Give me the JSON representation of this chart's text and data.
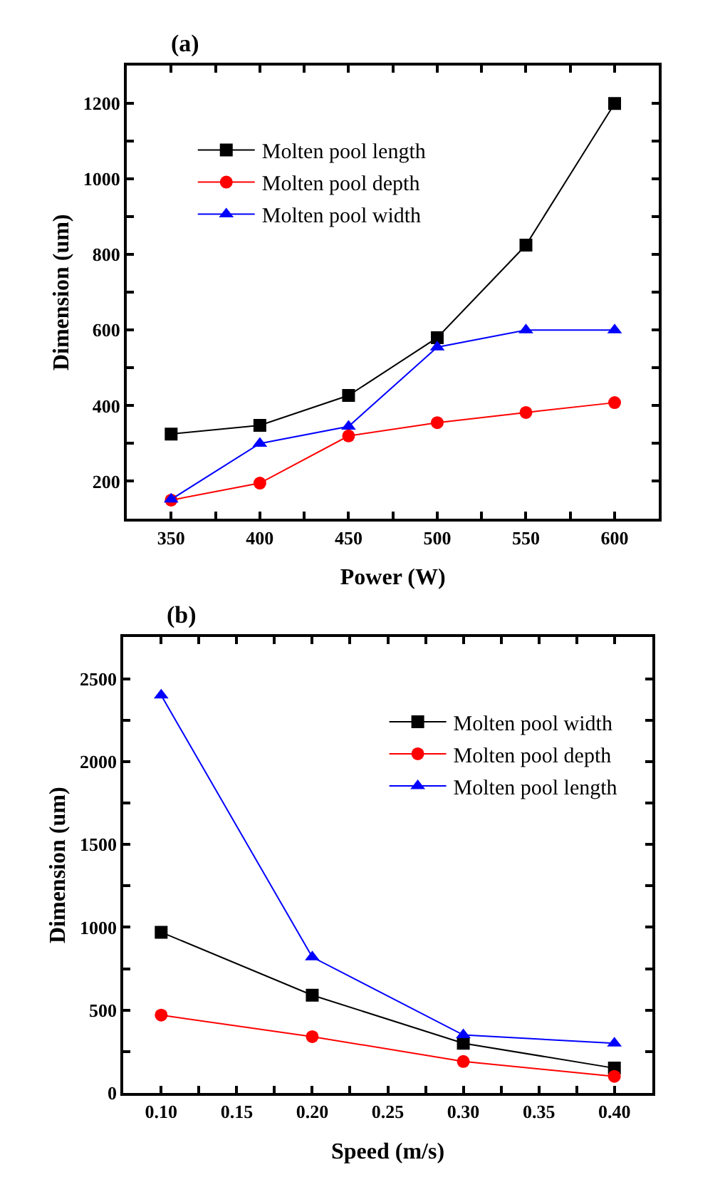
{
  "chart_data": [
    {
      "type": "line",
      "title": "(a)",
      "xlabel": "Power (W)",
      "ylabel": "Dimension (um)",
      "x": [
        350,
        400,
        450,
        500,
        550,
        600
      ],
      "series": [
        {
          "name": "Molten pool length",
          "color": "#000000",
          "marker": "square",
          "values": [
            325,
            348,
            427,
            580,
            825,
            1200
          ]
        },
        {
          "name": "Molten pool depth",
          "color": "#ff0000",
          "marker": "circle",
          "values": [
            150,
            195,
            320,
            355,
            382,
            408
          ]
        },
        {
          "name": "Molten pool width",
          "color": "#0000ff",
          "marker": "triangle",
          "values": [
            152,
            300,
            345,
            555,
            600,
            600
          ]
        }
      ],
      "xlim": [
        325,
        625
      ],
      "xticks": [
        350,
        {
          "value": 375,
          "label": null
        },
        400,
        {
          "value": 425,
          "label": null
        },
        450,
        {
          "value": 475,
          "label": null
        },
        500,
        {
          "value": 525,
          "label": null
        },
        550,
        {
          "value": 575,
          "label": null
        },
        600
      ],
      "ylim": [
        100,
        1300
      ],
      "yticks": [
        200,
        {
          "value": 300,
          "label": null
        },
        400,
        {
          "value": 500,
          "label": null
        },
        600,
        {
          "value": 700,
          "label": null
        },
        800,
        {
          "value": 900,
          "label": null
        },
        1000,
        {
          "value": 1100,
          "label": null
        },
        1200
      ],
      "legend": "top left",
      "line_style": "solid"
    },
    {
      "type": "line",
      "title": "(b)",
      "xlabel": "Speed (m/s)",
      "ylabel": "Dimension (um)",
      "x": [
        0.1,
        0.2,
        0.3,
        0.4
      ],
      "series": [
        {
          "name": "Molten pool width",
          "color": "#000000",
          "marker": "square",
          "values": [
            970,
            590,
            300,
            150
          ]
        },
        {
          "name": "Molten pool depth",
          "color": "#ff0000",
          "marker": "circle",
          "values": [
            470,
            340,
            190,
            100
          ]
        },
        {
          "name": "Molten pool length",
          "color": "#0000ff",
          "marker": "triangle",
          "values": [
            2400,
            820,
            350,
            300
          ]
        }
      ],
      "xlim": [
        0.075,
        0.425
      ],
      "xticks": [
        {
          "value": 0.1,
          "label": "0.10"
        },
        {
          "value": 0.125,
          "label": null
        },
        {
          "value": 0.15,
          "label": "0.15"
        },
        {
          "value": 0.175,
          "label": null
        },
        {
          "value": 0.2,
          "label": "0.20"
        },
        {
          "value": 0.225,
          "label": null
        },
        {
          "value": 0.25,
          "label": "0.25"
        },
        {
          "value": 0.275,
          "label": null
        },
        {
          "value": 0.3,
          "label": "0.30"
        },
        {
          "value": 0.325,
          "label": null
        },
        {
          "value": 0.35,
          "label": "0.35"
        },
        {
          "value": 0.375,
          "label": null
        },
        {
          "value": 0.4,
          "label": "0.40"
        }
      ],
      "ylim": [
        0,
        2750
      ],
      "yticks": [
        0,
        {
          "value": 250,
          "label": null
        },
        500,
        {
          "value": 750,
          "label": null
        },
        1000,
        {
          "value": 1250,
          "label": null
        },
        1500,
        {
          "value": 1750,
          "label": null
        },
        2000,
        {
          "value": 2250,
          "label": null
        },
        2500
      ],
      "legend": "top right",
      "line_style": "solid"
    }
  ]
}
